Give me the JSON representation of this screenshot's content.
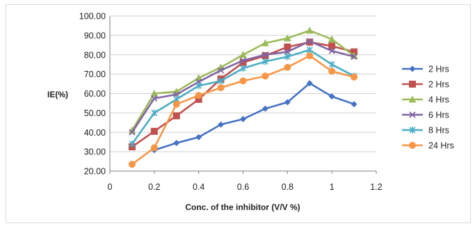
{
  "chart_data": {
    "type": "line",
    "title": "",
    "xlabel": "Conc. of the inhibitor (V/V %)",
    "ylabel": "IE(%)",
    "xlim": [
      0,
      1.2
    ],
    "ylim": [
      20,
      100
    ],
    "x_ticks": [
      "0",
      "0.2",
      "0.4",
      "0.6",
      "0.8",
      "1",
      "1.2"
    ],
    "y_ticks": [
      "20.00",
      "30.00",
      "40.00",
      "50.00",
      "60.00",
      "70.00",
      "80.00",
      "90.00",
      "100.00"
    ],
    "grid": true,
    "legend_position": "right",
    "x": [
      0.1,
      0.2,
      0.3,
      0.4,
      0.5,
      0.6,
      0.7,
      0.8,
      0.9,
      1.0,
      1.1
    ],
    "series": [
      {
        "name": "2 Hrs",
        "color": "#4472c4",
        "marker": "diamond",
        "values": [
          null,
          30.8,
          34.5,
          37.5,
          44.0,
          46.8,
          52.2,
          55.5,
          65.3,
          58.5,
          54.5
        ]
      },
      {
        "name": "2  Hrs",
        "color": "#c0504d",
        "marker": "square",
        "values": [
          32.5,
          40.5,
          48.5,
          57.0,
          67.5,
          76.0,
          79.5,
          84.0,
          86.5,
          84.5,
          81.5
        ]
      },
      {
        "name": "4  Hrs",
        "color": "#9bbb59",
        "marker": "triangle",
        "values": [
          41.0,
          60.0,
          61.0,
          68.0,
          73.5,
          80.0,
          86.0,
          88.5,
          92.5,
          88.0,
          79.5
        ]
      },
      {
        "name": "6  Hrs",
        "color": "#8064a2",
        "marker": "x",
        "values": [
          40.0,
          57.5,
          59.5,
          66.0,
          72.0,
          77.0,
          80.0,
          81.5,
          87.0,
          82.0,
          79.0
        ]
      },
      {
        "name": "8  Hrs",
        "color": "#4bacc6",
        "marker": "star",
        "values": [
          34.0,
          50.0,
          57.0,
          64.0,
          66.5,
          73.0,
          76.5,
          79.0,
          82.5,
          75.0,
          69.0
        ]
      },
      {
        "name": "24 Hrs",
        "color": "#f79646",
        "marker": "circle",
        "values": [
          23.5,
          32.0,
          54.5,
          59.0,
          63.0,
          66.5,
          69.0,
          73.5,
          79.5,
          71.5,
          68.5
        ]
      }
    ]
  }
}
